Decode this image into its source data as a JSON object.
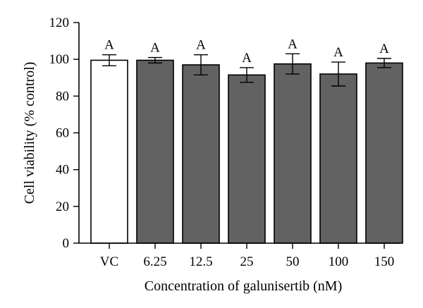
{
  "chart_data": {
    "type": "bar",
    "xlabel": "Concentration of galunisertib (nM)",
    "ylabel": "Cell viability (% control)",
    "ylim": [
      0,
      120
    ],
    "yticks": [
      0,
      20,
      40,
      60,
      80,
      100,
      120
    ],
    "grid": false,
    "categories": [
      "VC",
      "6.25",
      "12.5",
      "25",
      "50",
      "100",
      "150"
    ],
    "values": [
      99.5,
      99.5,
      97,
      91.5,
      97.5,
      92,
      98
    ],
    "errors": [
      3,
      1.5,
      5.5,
      4,
      5.5,
      6.5,
      2.5
    ],
    "annotations": [
      "A",
      "A",
      "A",
      "A",
      "A",
      "A",
      "A"
    ],
    "colors": {
      "control_fill": "#ffffff",
      "treatment_fill": "#626262",
      "stroke": "#000000"
    }
  }
}
